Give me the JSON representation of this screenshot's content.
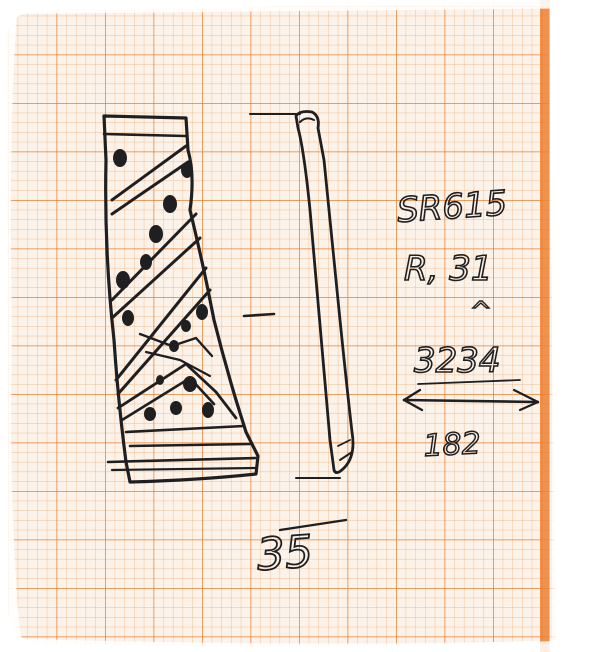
{
  "image": {
    "kind": "photo of a hand-drawn archaeological sherd sketch on orange graph paper",
    "paper_color": "#fbf3ea",
    "grid_color": "#f08a3c",
    "ink_color": "#1f1f22"
  },
  "annotations": {
    "site_code": "SR615",
    "reference": "R, 31",
    "number_top": "3234",
    "number_bottom": "182",
    "dimension": "35"
  },
  "marks": {
    "dash": "—",
    "caret": "^"
  }
}
